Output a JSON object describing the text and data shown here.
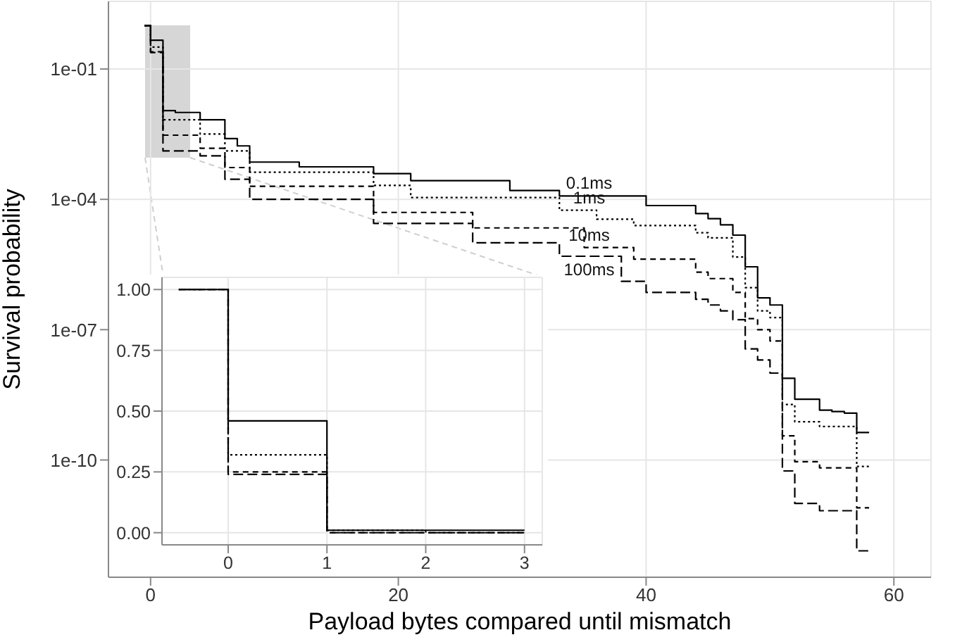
{
  "chart_data": [
    {
      "type": "step",
      "xlabel": "Payload bytes compared until mismatch",
      "ylabel": "Survival probability",
      "log": "y",
      "grid": true,
      "xlim": [
        -3.4,
        63
      ],
      "xticks": [
        0,
        20,
        40,
        60
      ],
      "ylim": [
        2e-13,
        3.6
      ],
      "yticks": [
        {
          "value": 0.1,
          "label": "1e-01"
        },
        {
          "value": 0.0001,
          "label": "1e-04"
        },
        {
          "value": 1e-07,
          "label": "1e-07"
        },
        {
          "value": 1e-10,
          "label": "1e-10"
        }
      ],
      "series": [
        {
          "name": "0.1ms",
          "color": "#000000",
          "line_style": "solid",
          "x": [
            -0.5,
            0,
            1,
            2,
            4,
            6,
            7,
            8,
            12,
            18,
            21,
            29,
            33,
            40,
            44,
            45,
            46,
            47,
            48,
            49,
            50,
            51,
            52,
            54,
            55,
            56,
            57,
            58
          ],
          "values": [
            1,
            0.46,
            0.011,
            0.01,
            0.0068,
            0.0025,
            0.0017,
            0.00072,
            0.00056,
            0.00039,
            0.00027,
            0.00016,
            0.00012,
            7.2e-05,
            4.7e-05,
            3.6e-05,
            2.6e-05,
            1.5e-05,
            2.8e-06,
            5.4e-07,
            3.7e-07,
            7.6e-09,
            2.5e-09,
            1.4e-09,
            1.3e-09,
            1.2e-09,
            4.3e-10,
            4.3e-10
          ]
        },
        {
          "name": "1ms",
          "color": "#000000",
          "line_style": "dotted",
          "x": [
            -0.5,
            0,
            1,
            4,
            6,
            8,
            18,
            21,
            33,
            36,
            39,
            44,
            45,
            47,
            48,
            49,
            50,
            51,
            52,
            54,
            57,
            58
          ],
          "values": [
            1,
            0.32,
            0.0068,
            0.0032,
            0.0013,
            0.00042,
            0.00021,
            0.00011,
            5.6e-05,
            3.5e-05,
            2.5e-05,
            1.7e-05,
            1.3e-05,
            4.7e-06,
            9.3e-07,
            2.7e-07,
            1.9e-07,
            1.9e-09,
            7.6e-10,
            5.9e-10,
            7.1e-11,
            7.1e-11
          ]
        },
        {
          "name": "10ms",
          "color": "#000000",
          "line_style": "dashed",
          "x": [
            -0.5,
            0,
            1,
            4,
            6,
            8,
            18,
            26,
            35,
            39,
            44,
            45,
            47,
            48,
            49,
            50,
            51,
            52,
            54,
            57,
            58
          ],
          "values": [
            1,
            0.25,
            0.003,
            0.0015,
            0.00054,
            0.0002,
            5e-05,
            2.2e-05,
            7.8e-06,
            4.2e-06,
            2.1e-06,
            1.5e-06,
            7.2e-07,
            1.8e-07,
            1e-07,
            5.5e-08,
            3.6e-10,
            9.1e-11,
            6.6e-11,
            7.9e-12,
            7.9e-12
          ]
        },
        {
          "name": "100ms",
          "color": "#000000",
          "line_style": "longdash",
          "x": [
            -0.5,
            0,
            1,
            4,
            6,
            8,
            18,
            26,
            33,
            38,
            40,
            44,
            45,
            46,
            47,
            48,
            49,
            50,
            51,
            52,
            54,
            57,
            58
          ],
          "values": [
            1,
            0.24,
            0.0013,
            0.001,
            0.00029,
            0.0001,
            2.8e-05,
            1e-05,
            4.9e-06,
            1.3e-06,
            7.2e-07,
            5e-07,
            3.7e-07,
            2.7e-07,
            1.7e-07,
            3.6e-08,
            2e-08,
            1e-08,
            5.6e-11,
            1e-11,
            6.8e-12,
            8.1e-13,
            8.1e-13
          ]
        }
      ]
    },
    {
      "type": "step",
      "grid": true,
      "xlim": [
        -0.67,
        3.18
      ],
      "xticks": [
        0,
        1,
        2,
        3
      ],
      "ylim": [
        -0.05,
        1.05
      ],
      "yticks": [
        {
          "value": 0,
          "label": "0.00"
        },
        {
          "value": 0.25,
          "label": "0.25"
        },
        {
          "value": 0.5,
          "label": "0.50"
        },
        {
          "value": 0.75,
          "label": "0.75"
        },
        {
          "value": 1,
          "label": "1.00"
        }
      ],
      "series": [
        {
          "color": "#000000",
          "line_style": "solid",
          "x": [
            -0.5,
            0,
            1,
            2,
            3
          ],
          "values": [
            1,
            0.46,
            0.01,
            0.01,
            0.01
          ]
        },
        {
          "color": "#000000",
          "line_style": "dotted",
          "x": [
            -0.5,
            0,
            1,
            2,
            3
          ],
          "values": [
            1,
            0.32,
            0.01,
            0,
            0
          ]
        },
        {
          "color": "#000000",
          "line_style": "dashed",
          "x": [
            -0.5,
            0,
            1,
            2,
            3
          ],
          "values": [
            1,
            0.25,
            0,
            0,
            0
          ]
        },
        {
          "color": "#000000",
          "line_style": "longdash",
          "x": [
            -0.5,
            0,
            1,
            2,
            3
          ],
          "values": [
            1,
            0.24,
            0,
            0,
            0
          ]
        }
      ]
    }
  ]
}
